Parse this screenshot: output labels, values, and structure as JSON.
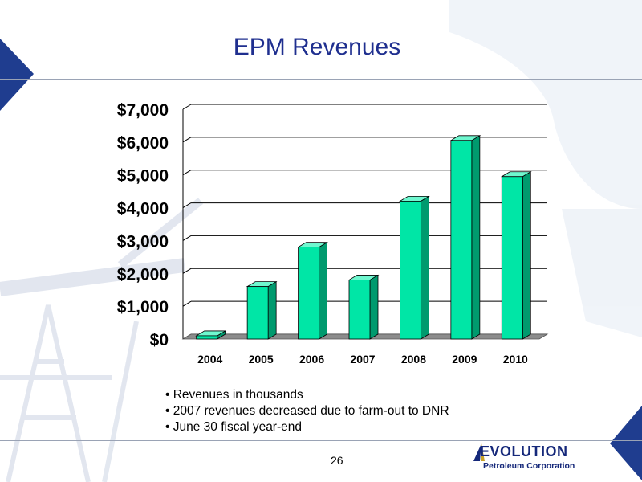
{
  "slide": {
    "title": "EPM Revenues",
    "bullets": [
      "• Revenues in thousands",
      "• 2007 revenues decreased due to farm-out to DNR",
      "• June 30 fiscal year-end"
    ],
    "page_number": "26"
  },
  "logo": {
    "wordmark": "EVOLUTION",
    "subtitle": "Petroleum Corporation"
  },
  "colors": {
    "title": "#1f2f8f",
    "bar_front": "#00e6a6",
    "bar_side": "#009a6e",
    "bar_top": "#6ff7cf",
    "floor": "#8c8c8c",
    "corner_triangle": "#1f3d8f"
  },
  "chart_data": {
    "type": "bar",
    "categories": [
      "2004",
      "2005",
      "2006",
      "2007",
      "2008",
      "2009",
      "2010"
    ],
    "values": [
      100,
      1600,
      2800,
      1800,
      4200,
      6050,
      4950
    ],
    "ylim": [
      0,
      7000
    ],
    "yticks": [
      0,
      1000,
      2000,
      3000,
      4000,
      5000,
      6000,
      7000
    ],
    "ytick_labels": [
      "$0",
      "$1,000",
      "$2,000",
      "$3,000",
      "$4,000",
      "$5,000",
      "$6,000",
      "$7,000"
    ],
    "grid": true,
    "legend": "none",
    "style": "3d"
  }
}
